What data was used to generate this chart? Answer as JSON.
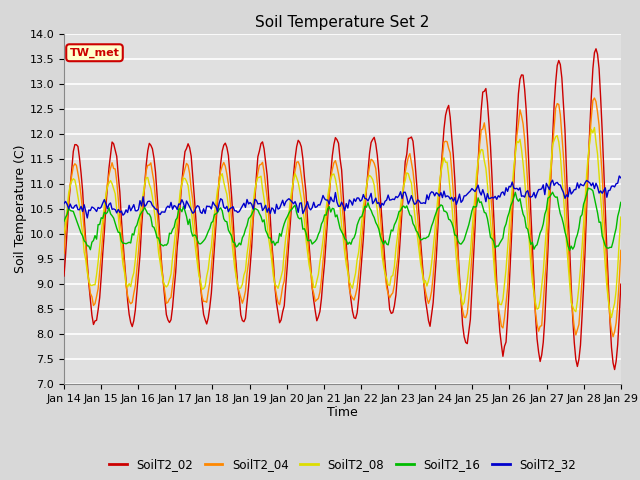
{
  "title": "Soil Temperature Set 2",
  "xlabel": "Time",
  "ylabel": "Soil Temperature (C)",
  "ylim": [
    7.0,
    14.0
  ],
  "yticks": [
    7.0,
    7.5,
    8.0,
    8.5,
    9.0,
    9.5,
    10.0,
    10.5,
    11.0,
    11.5,
    12.0,
    12.5,
    13.0,
    13.5,
    14.0
  ],
  "xtick_labels": [
    "Jan 14",
    "Jan 15",
    "Jan 16",
    "Jan 17",
    "Jan 18",
    "Jan 19",
    "Jan 20",
    "Jan 21",
    "Jan 22",
    "Jan 23",
    "Jan 24",
    "Jan 25",
    "Jan 26",
    "Jan 27",
    "Jan 28",
    "Jan 29"
  ],
  "series_colors": {
    "SoilT2_02": "#cc0000",
    "SoilT2_04": "#ff8800",
    "SoilT2_08": "#dddd00",
    "SoilT2_16": "#00bb00",
    "SoilT2_32": "#0000cc"
  },
  "annotation_text": "TW_met",
  "annotation_color": "#cc0000",
  "annotation_bg": "#ffffcc",
  "fig_bg_color": "#d8d8d8",
  "plot_bg_color": "#e0e0e0",
  "grid_color": "#ffffff",
  "title_fontsize": 11,
  "axis_fontsize": 9,
  "tick_fontsize": 8,
  "legend_fontsize": 8.5
}
